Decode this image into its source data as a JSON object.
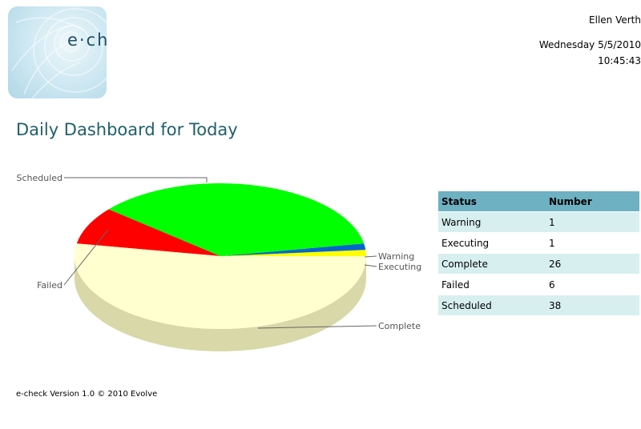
{
  "header": {
    "logo_text": "e·check",
    "user_name": "Ellen Verth",
    "date": "Wednesday 5/5/2010",
    "time": "10:45:43"
  },
  "page_title": "Daily Dashboard for Today",
  "table": {
    "headers": [
      "Status",
      "Number"
    ],
    "rows": [
      {
        "status": "Warning",
        "number": "1"
      },
      {
        "status": "Executing",
        "number": "1"
      },
      {
        "status": "Complete",
        "number": "26"
      },
      {
        "status": "Failed",
        "number": "6"
      },
      {
        "status": "Scheduled",
        "number": "38"
      }
    ]
  },
  "footer": "e-check Version 1.0 © 2010 Evolve",
  "colors": {
    "title": "#1f5f6c",
    "table_header": "#6db1c2",
    "table_stripe": "#d8efef"
  },
  "chart_data": {
    "type": "pie",
    "title": "",
    "slices": [
      {
        "label": "Warning",
        "value": 1,
        "color": "#ffff00",
        "side_color": "#b5b500"
      },
      {
        "label": "Executing",
        "value": 1,
        "color": "#0066cc",
        "side_color": "#004488"
      },
      {
        "label": "Complete",
        "value": 26,
        "color": "#00ff00",
        "side_color": "#1fc21f"
      },
      {
        "label": "Failed",
        "value": 6,
        "color": "#ff0000",
        "side_color": "#a50000"
      },
      {
        "label": "Scheduled",
        "value": 38,
        "color": "#ffffd0",
        "side_color": "#d8d8a8"
      }
    ],
    "style": "3d"
  }
}
